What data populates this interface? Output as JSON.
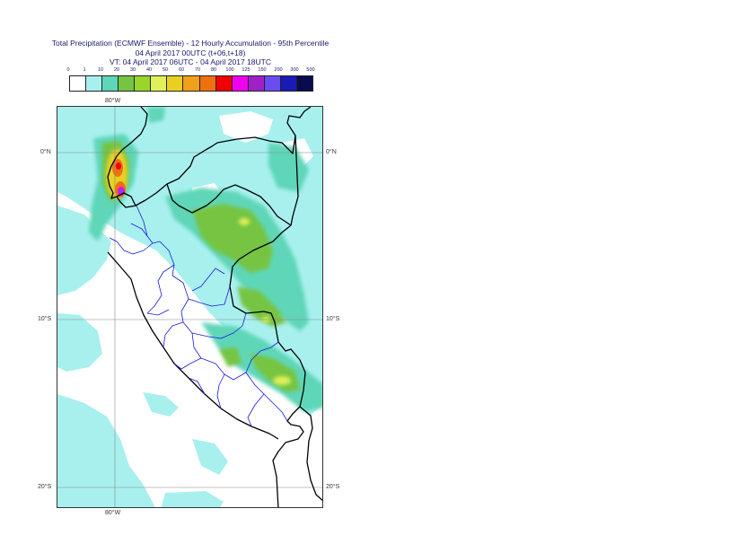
{
  "title": {
    "line1": "Total Precipitation (ECMWF Ensemble) - 12 Hourly Accumulation - 95th Percentile",
    "line2": "04 April 2017 00UTC (t+06,t+18)",
    "line3": "VT: 04 April 2017 06UTC - 04 April 2017 18UTC"
  },
  "legend": {
    "labels": [
      "0",
      "1",
      "10",
      "20",
      "30",
      "40",
      "50",
      "60",
      "70",
      "80",
      "100",
      "125",
      "150",
      "200",
      "300",
      "500"
    ],
    "colors": [
      "#ffffff",
      "#a8f0ee",
      "#5ed6b8",
      "#76c442",
      "#98d62a",
      "#dff05a",
      "#e8d020",
      "#f0a01a",
      "#f07010",
      "#f00000",
      "#f000f0",
      "#a020c8",
      "#6a4cf0",
      "#1a1ab4",
      "#0a0a50"
    ]
  },
  "map": {
    "lon_top": "80°W",
    "lon_bottom": "80°W",
    "lat_left": [
      "0°N",
      "10°S",
      "20°S"
    ],
    "lat_right": [
      "0°N",
      "10°S",
      "20°S"
    ]
  }
}
